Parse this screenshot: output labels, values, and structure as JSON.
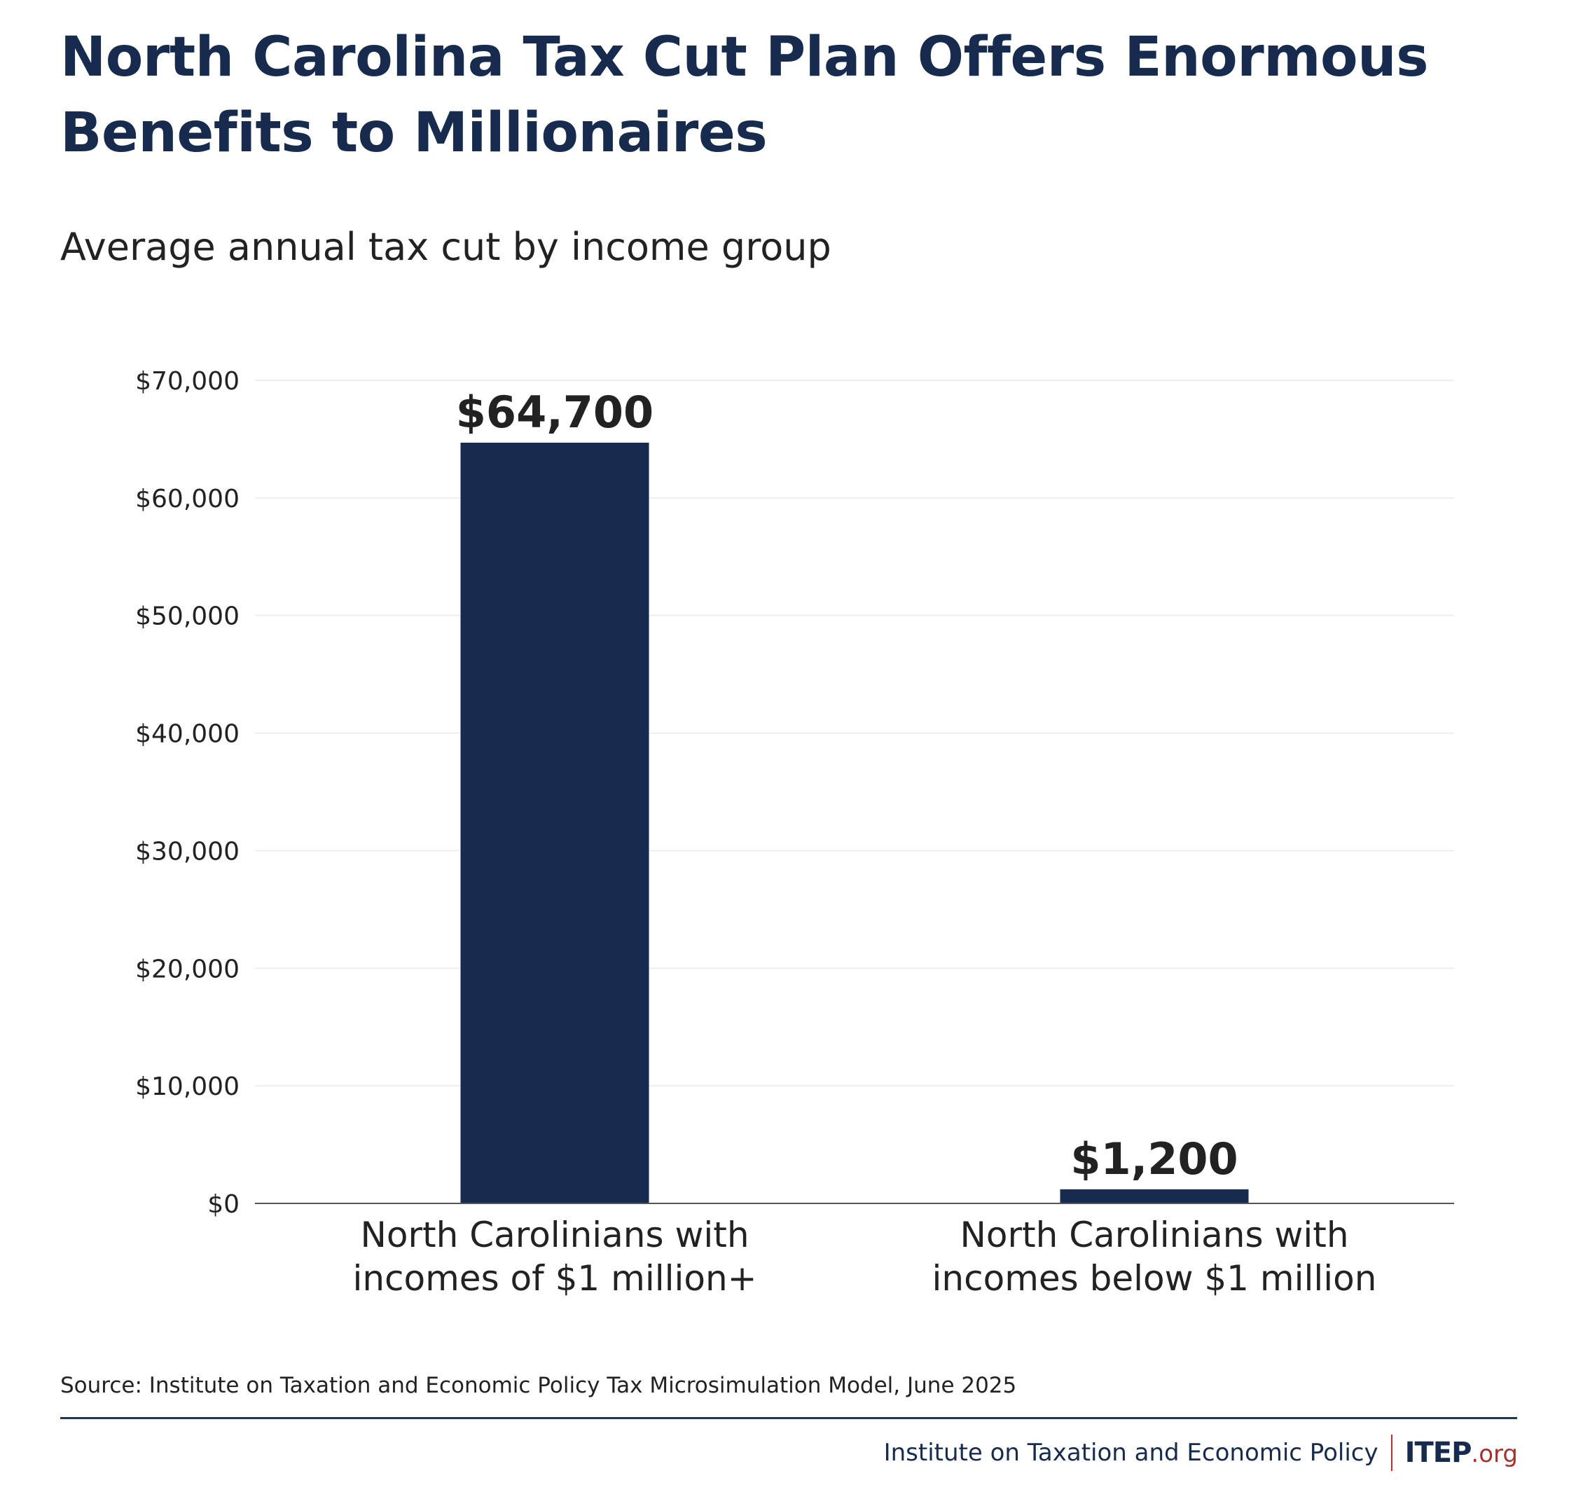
{
  "title": "North Carolina Tax Cut Plan Offers Enormous Benefits to Millionaires",
  "subtitle": "Average annual tax cut by income group",
  "source": "Source: Institute on Taxation and Economic Policy Tax Microsimulation Model, June 2025",
  "footer": {
    "organization": "Institute on Taxation and Economic Policy",
    "logo_main": "ITEP",
    "logo_suffix": ".org"
  },
  "colors": {
    "bar": "#162b4e",
    "title": "#162b4e",
    "text": "#222222",
    "gridline": "#eeeeee",
    "axis": "#555555",
    "logo_accent": "#a8302c"
  },
  "chart_data": {
    "type": "bar",
    "title": "North Carolina Tax Cut Plan Offers Enormous Benefits to Millionaires",
    "subtitle": "Average annual tax cut by income group",
    "xlabel": "",
    "ylabel": "",
    "ylim": [
      0,
      70000
    ],
    "grid": true,
    "yticks": [
      0,
      10000,
      20000,
      30000,
      40000,
      50000,
      60000,
      70000
    ],
    "ytick_labels": [
      "$0",
      "$10,000",
      "$20,000",
      "$30,000",
      "$40,000",
      "$50,000",
      "$60,000",
      "$70,000"
    ],
    "categories": [
      [
        "North Carolinians with",
        "incomes of $1 million+"
      ],
      [
        "North Carolinians with",
        "incomes below $1 million"
      ]
    ],
    "values": [
      64700,
      1200
    ],
    "data_labels": [
      "$64,700",
      "$1,200"
    ]
  }
}
